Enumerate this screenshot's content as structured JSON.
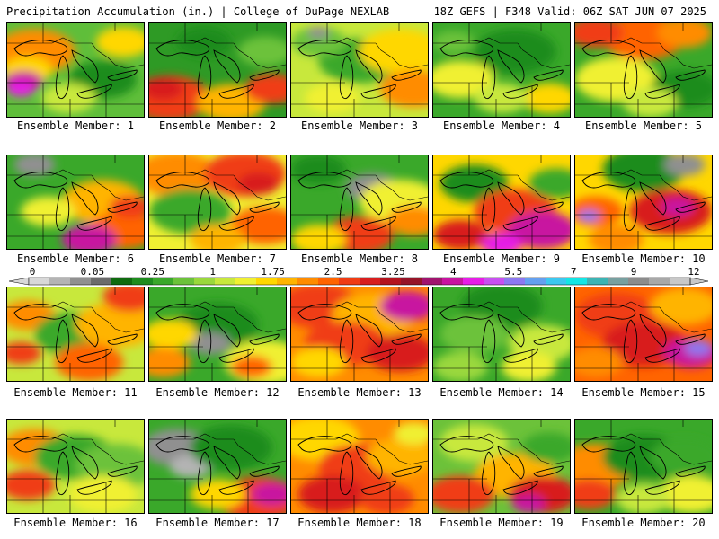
{
  "header": {
    "left": "Precipitation Accumulation (in.) | College of DuPage NEXLAB",
    "right": "18Z GEFS | F348 Valid: 06Z SAT JUN 07 2025"
  },
  "member_label_prefix": "Ensemble Member: ",
  "members": [
    1,
    2,
    3,
    4,
    5,
    6,
    7,
    8,
    9,
    10,
    11,
    12,
    13,
    14,
    15,
    16,
    17,
    18,
    19,
    20
  ],
  "colorbar": {
    "tick_labels": [
      "0",
      "0.05",
      "0.25",
      "1",
      "1.75",
      "2.5",
      "3.25",
      "4",
      "5.5",
      "7",
      "9",
      "12"
    ],
    "colors": [
      "#d8d8d8",
      "#b4b4b4",
      "#909090",
      "#6c6c6c",
      "#0f6b0f",
      "#1e8c1e",
      "#3aa82a",
      "#6cc23a",
      "#9ad83c",
      "#c8e83c",
      "#f0f032",
      "#ffd700",
      "#ffb400",
      "#ff8c00",
      "#ff6400",
      "#f03c14",
      "#d81e1e",
      "#b4141e",
      "#961428",
      "#a0146e",
      "#c814a0",
      "#e61ee6",
      "#c850f0",
      "#8c78f0",
      "#64a0f0",
      "#3cc8f0",
      "#14e6e6",
      "#3cb4b4",
      "#78a0a0",
      "#8c8c8c",
      "#a8a8a8",
      "#c8c8c8"
    ]
  },
  "panels": [
    {
      "member": 1,
      "base": "#5fbe3a",
      "blobs": [
        [
          0.2,
          0.3,
          0.3,
          "#ff8c00"
        ],
        [
          0.15,
          0.5,
          0.18,
          "#ffd700"
        ],
        [
          0.12,
          0.62,
          0.14,
          "#c814a0"
        ],
        [
          0.1,
          0.7,
          0.1,
          "#e61ee6"
        ],
        [
          0.7,
          0.6,
          0.25,
          "#1e8c1e"
        ],
        [
          0.85,
          0.2,
          0.2,
          "#ffd700"
        ],
        [
          0.45,
          0.8,
          0.2,
          "#c8e83c"
        ]
      ]
    },
    {
      "member": 2,
      "base": "#2e9a25",
      "blobs": [
        [
          0.15,
          0.8,
          0.3,
          "#f03c14"
        ],
        [
          0.1,
          0.7,
          0.15,
          "#d81e1e"
        ],
        [
          0.6,
          0.85,
          0.25,
          "#ffb400"
        ],
        [
          0.9,
          0.7,
          0.2,
          "#f03c14"
        ],
        [
          0.4,
          0.2,
          0.2,
          "#1e8c1e"
        ],
        [
          0.85,
          0.3,
          0.2,
          "#6cc23a"
        ]
      ]
    },
    {
      "member": 3,
      "base": "#c8e83c",
      "blobs": [
        [
          0.5,
          0.4,
          0.3,
          "#3aa82a"
        ],
        [
          0.8,
          0.3,
          0.3,
          "#ffd700"
        ],
        [
          0.9,
          0.7,
          0.25,
          "#ff8c00"
        ],
        [
          0.2,
          0.2,
          0.2,
          "#6cc23a"
        ],
        [
          0.3,
          0.8,
          0.2,
          "#f0f032"
        ],
        [
          0.2,
          0.1,
          0.08,
          "#909090"
        ]
      ]
    },
    {
      "member": 4,
      "base": "#3aa82a",
      "blobs": [
        [
          0.6,
          0.3,
          0.3,
          "#1e8c1e"
        ],
        [
          0.2,
          0.6,
          0.25,
          "#f0f032"
        ],
        [
          0.85,
          0.8,
          0.2,
          "#ffd700"
        ],
        [
          0.5,
          0.8,
          0.2,
          "#c8e83c"
        ],
        [
          0.15,
          0.2,
          0.15,
          "#6cc23a"
        ]
      ]
    },
    {
      "member": 5,
      "base": "#3aa82a",
      "blobs": [
        [
          0.5,
          0.15,
          0.3,
          "#ff6400"
        ],
        [
          0.15,
          0.1,
          0.2,
          "#f03c14"
        ],
        [
          0.8,
          0.1,
          0.2,
          "#ff8c00"
        ],
        [
          0.3,
          0.6,
          0.3,
          "#f0f032"
        ],
        [
          0.8,
          0.7,
          0.25,
          "#1e8c1e"
        ],
        [
          0.55,
          0.85,
          0.2,
          "#c8e83c"
        ]
      ]
    },
    {
      "member": 6,
      "base": "#3aa82a",
      "blobs": [
        [
          0.2,
          0.1,
          0.15,
          "#909090"
        ],
        [
          0.7,
          0.5,
          0.3,
          "#ffb400"
        ],
        [
          0.85,
          0.8,
          0.25,
          "#ff6400"
        ],
        [
          0.6,
          0.9,
          0.2,
          "#c814a0"
        ],
        [
          0.9,
          0.55,
          0.15,
          "#f03c14"
        ],
        [
          0.3,
          0.6,
          0.2,
          "#f0f032"
        ]
      ]
    },
    {
      "member": 7,
      "base": "#f0f032",
      "blobs": [
        [
          0.2,
          0.2,
          0.3,
          "#ff8c00"
        ],
        [
          0.7,
          0.2,
          0.3,
          "#f03c14"
        ],
        [
          0.8,
          0.3,
          0.15,
          "#d81e1e"
        ],
        [
          0.3,
          0.6,
          0.3,
          "#3aa82a"
        ],
        [
          0.85,
          0.75,
          0.25,
          "#ff6400"
        ],
        [
          0.5,
          0.9,
          0.2,
          "#ffb400"
        ]
      ]
    },
    {
      "member": 8,
      "base": "#3aa82a",
      "blobs": [
        [
          0.2,
          0.15,
          0.2,
          "#1e8c1e"
        ],
        [
          0.6,
          0.35,
          0.2,
          "#909090"
        ],
        [
          0.8,
          0.5,
          0.3,
          "#f0f032"
        ],
        [
          0.9,
          0.7,
          0.2,
          "#ff8c00"
        ],
        [
          0.5,
          0.85,
          0.25,
          "#f03c14"
        ],
        [
          0.2,
          0.9,
          0.2,
          "#ffd700"
        ]
      ]
    },
    {
      "member": 9,
      "base": "#ffd700",
      "blobs": [
        [
          0.3,
          0.3,
          0.25,
          "#1e8c1e"
        ],
        [
          0.6,
          0.6,
          0.3,
          "#f03c14"
        ],
        [
          0.2,
          0.85,
          0.2,
          "#d81e1e"
        ],
        [
          0.8,
          0.8,
          0.25,
          "#c814a0"
        ],
        [
          0.9,
          0.3,
          0.2,
          "#3aa82a"
        ],
        [
          0.5,
          0.95,
          0.15,
          "#e61ee6"
        ]
      ]
    },
    {
      "member": 10,
      "base": "#ffd700",
      "blobs": [
        [
          0.5,
          0.15,
          0.3,
          "#1e8c1e"
        ],
        [
          0.8,
          0.1,
          0.15,
          "#909090"
        ],
        [
          0.15,
          0.6,
          0.2,
          "#ff6400"
        ],
        [
          0.1,
          0.65,
          0.08,
          "#8c78f0"
        ],
        [
          0.7,
          0.6,
          0.3,
          "#d81e1e"
        ],
        [
          0.75,
          0.55,
          0.12,
          "#c814a0"
        ],
        [
          0.3,
          0.9,
          0.2,
          "#ff8c00"
        ]
      ]
    },
    {
      "member": 11,
      "base": "#c8e83c",
      "blobs": [
        [
          0.15,
          0.3,
          0.2,
          "#ff8c00"
        ],
        [
          0.1,
          0.7,
          0.15,
          "#f03c14"
        ],
        [
          0.5,
          0.5,
          0.3,
          "#3aa82a"
        ],
        [
          0.8,
          0.4,
          0.3,
          "#ffb400"
        ],
        [
          0.6,
          0.8,
          0.25,
          "#ff6400"
        ],
        [
          0.9,
          0.1,
          0.2,
          "#f03c14"
        ]
      ]
    },
    {
      "member": 12,
      "base": "#3aa82a",
      "blobs": [
        [
          0.5,
          0.4,
          0.3,
          "#1e8c1e"
        ],
        [
          0.45,
          0.6,
          0.15,
          "#909090"
        ],
        [
          0.15,
          0.5,
          0.2,
          "#ffd700"
        ],
        [
          0.1,
          0.8,
          0.2,
          "#ff8c00"
        ],
        [
          0.85,
          0.8,
          0.3,
          "#f0f032"
        ],
        [
          0.75,
          0.85,
          0.15,
          "#ff6400"
        ]
      ]
    },
    {
      "member": 13,
      "base": "#ff8c00",
      "blobs": [
        [
          0.2,
          0.2,
          0.3,
          "#f03c14"
        ],
        [
          0.6,
          0.3,
          0.3,
          "#ffb400"
        ],
        [
          0.4,
          0.6,
          0.3,
          "#f03c14"
        ],
        [
          0.8,
          0.7,
          0.25,
          "#d81e1e"
        ],
        [
          0.2,
          0.8,
          0.2,
          "#ffd700"
        ],
        [
          0.85,
          0.2,
          0.2,
          "#c814a0"
        ]
      ]
    },
    {
      "member": 14,
      "base": "#3aa82a",
      "blobs": [
        [
          0.5,
          0.2,
          0.3,
          "#1e8c1e"
        ],
        [
          0.3,
          0.5,
          0.25,
          "#6cc23a"
        ],
        [
          0.8,
          0.6,
          0.25,
          "#c8e83c"
        ],
        [
          0.7,
          0.85,
          0.2,
          "#f0f032"
        ],
        [
          0.2,
          0.85,
          0.2,
          "#9ad83c"
        ]
      ]
    },
    {
      "member": 15,
      "base": "#ff6400",
      "blobs": [
        [
          0.3,
          0.3,
          0.3,
          "#f03c14"
        ],
        [
          0.5,
          0.6,
          0.3,
          "#d81e1e"
        ],
        [
          0.85,
          0.7,
          0.2,
          "#c814a0"
        ],
        [
          0.9,
          0.65,
          0.1,
          "#8c78f0"
        ],
        [
          0.8,
          0.2,
          0.25,
          "#ffb400"
        ],
        [
          0.15,
          0.8,
          0.2,
          "#ff8c00"
        ]
      ]
    },
    {
      "member": 16,
      "base": "#c8e83c",
      "blobs": [
        [
          0.2,
          0.3,
          0.25,
          "#ff8c00"
        ],
        [
          0.15,
          0.7,
          0.2,
          "#f03c14"
        ],
        [
          0.5,
          0.4,
          0.3,
          "#3aa82a"
        ],
        [
          0.8,
          0.5,
          0.3,
          "#6cc23a"
        ],
        [
          0.7,
          0.8,
          0.25,
          "#f0f032"
        ]
      ]
    },
    {
      "member": 17,
      "base": "#3aa82a",
      "blobs": [
        [
          0.2,
          0.3,
          0.25,
          "#909090"
        ],
        [
          0.3,
          0.5,
          0.15,
          "#b4b4b4"
        ],
        [
          0.6,
          0.3,
          0.3,
          "#1e8c1e"
        ],
        [
          0.8,
          0.85,
          0.3,
          "#f03c14"
        ],
        [
          0.9,
          0.8,
          0.15,
          "#c814a0"
        ],
        [
          0.5,
          0.8,
          0.2,
          "#ffd700"
        ]
      ]
    },
    {
      "member": 18,
      "base": "#ff8c00",
      "blobs": [
        [
          0.2,
          0.2,
          0.3,
          "#ffd700"
        ],
        [
          0.5,
          0.5,
          0.3,
          "#f03c14"
        ],
        [
          0.8,
          0.4,
          0.25,
          "#ffb400"
        ],
        [
          0.3,
          0.8,
          0.25,
          "#d81e1e"
        ],
        [
          0.7,
          0.85,
          0.2,
          "#f03c14"
        ],
        [
          0.9,
          0.15,
          0.15,
          "#f0f032"
        ]
      ]
    },
    {
      "member": 19,
      "base": "#6cc23a",
      "blobs": [
        [
          0.3,
          0.25,
          0.25,
          "#c8e83c"
        ],
        [
          0.6,
          0.6,
          0.3,
          "#ffb400"
        ],
        [
          0.2,
          0.8,
          0.25,
          "#f03c14"
        ],
        [
          0.8,
          0.8,
          0.25,
          "#d81e1e"
        ],
        [
          0.7,
          0.9,
          0.12,
          "#c814a0"
        ],
        [
          0.85,
          0.3,
          0.2,
          "#3aa82a"
        ]
      ]
    },
    {
      "member": 20,
      "base": "#3aa82a",
      "blobs": [
        [
          0.15,
          0.5,
          0.3,
          "#ff8c00"
        ],
        [
          0.1,
          0.8,
          0.2,
          "#f03c14"
        ],
        [
          0.5,
          0.4,
          0.3,
          "#1e8c1e"
        ],
        [
          0.8,
          0.4,
          0.25,
          "#3aa82a"
        ],
        [
          0.85,
          0.8,
          0.25,
          "#f0f032"
        ],
        [
          0.5,
          0.85,
          0.2,
          "#c8e83c"
        ]
      ]
    }
  ]
}
